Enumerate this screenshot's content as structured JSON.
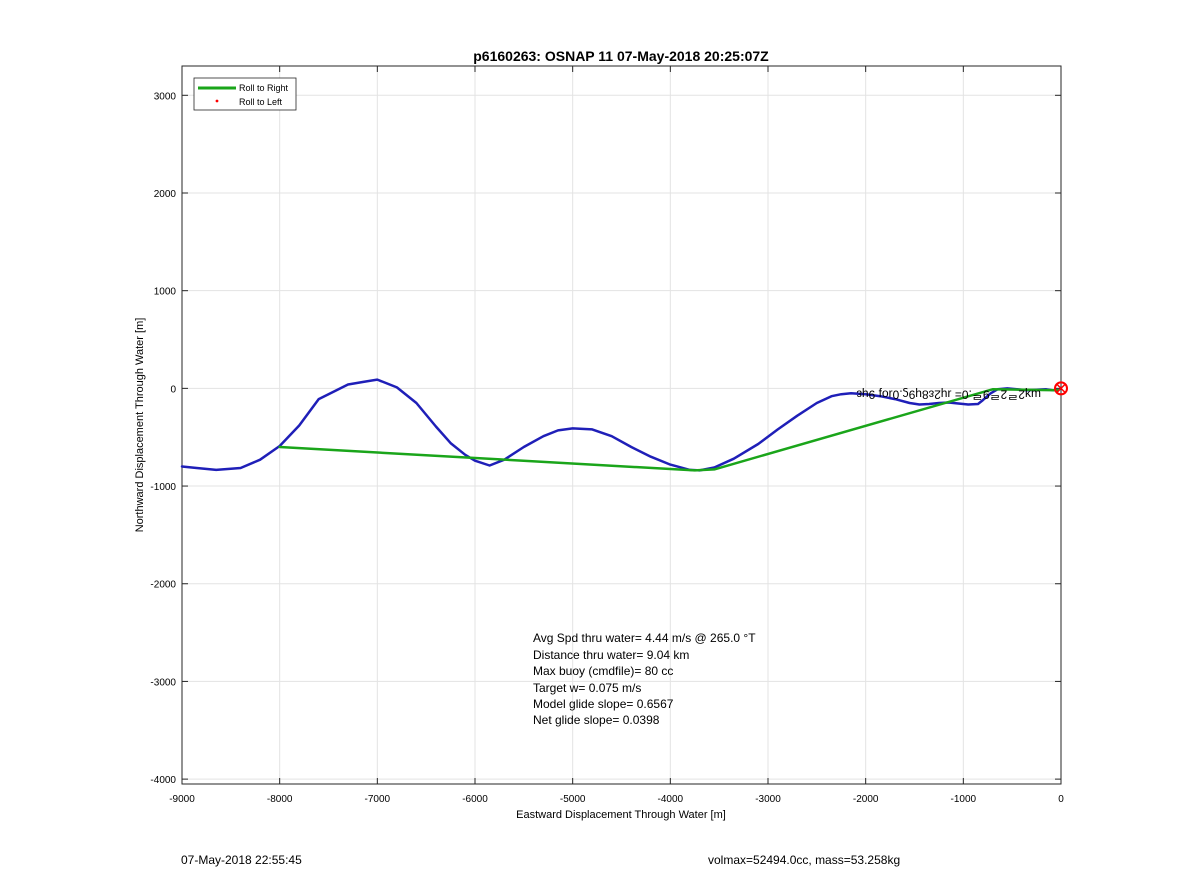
{
  "chart_data": {
    "type": "line",
    "title": "p6160263: OSNAP 11 07-May-2018 20:25:07Z",
    "xlabel": "Eastward Displacement Through Water [m]",
    "ylabel": "Northward Displacement Through Water [m]",
    "xlim": [
      -9000,
      0
    ],
    "ylim": [
      -4050,
      3300
    ],
    "xticks": [
      -9000,
      -8000,
      -7000,
      -6000,
      -5000,
      -4000,
      -3000,
      -2000,
      -1000,
      0
    ],
    "yticks": [
      -4000,
      -3000,
      -2000,
      -1000,
      0,
      1000,
      2000,
      3000
    ],
    "grid": true,
    "legend_position": "top-left",
    "series": [
      {
        "name": "Roll to Right",
        "color": "#1aa51a",
        "x": [
          -8000,
          -3750,
          -3550,
          -700,
          -30
        ],
        "y": [
          -600,
          -840,
          -830,
          -10,
          -20
        ]
      },
      {
        "name": "Roll to Left",
        "color": "#ff0000",
        "x": [],
        "y": []
      },
      {
        "name": "",
        "color": "#1f1fb8",
        "x": [
          -9000,
          -8850,
          -8650,
          -8400,
          -8200,
          -8000,
          -7800,
          -7600,
          -7500,
          -7300,
          -7150,
          -7000,
          -6800,
          -6600,
          -6400,
          -6250,
          -6100,
          -6000,
          -5850,
          -5700,
          -5500,
          -5300,
          -5150,
          -5000,
          -4800,
          -4600,
          -4400,
          -4200,
          -4000,
          -3800,
          -3700,
          -3550,
          -3350,
          -3100,
          -2900,
          -2700,
          -2500,
          -2350,
          -2250,
          -2150,
          -2000,
          -1850,
          -1700,
          -1550,
          -1450,
          -1350,
          -1250,
          -1150,
          -1050,
          -950,
          -850,
          -800,
          -720,
          -650,
          -550,
          -450,
          -350,
          -250,
          -150,
          -80,
          -30
        ],
        "y": [
          -800,
          -815,
          -835,
          -815,
          -730,
          -590,
          -380,
          -110,
          -60,
          40,
          65,
          90,
          10,
          -150,
          -390,
          -560,
          -680,
          -740,
          -790,
          -730,
          -600,
          -490,
          -430,
          -410,
          -420,
          -490,
          -600,
          -700,
          -780,
          -835,
          -840,
          -810,
          -720,
          -570,
          -420,
          -280,
          -150,
          -80,
          -60,
          -50,
          -60,
          -80,
          -110,
          -150,
          -165,
          -160,
          -150,
          -145,
          -155,
          -165,
          -160,
          -120,
          -50,
          -10,
          0,
          -10,
          -20,
          -15,
          -10,
          -20,
          -20
        ]
      }
    ],
    "annotations": {
      "stats_lines": [
        "Avg Spd thru water=  4.44 m/s @ 265.0 °T",
        "Distance thru water=  9.04 km",
        "Max buoy (cmdfile)= 80 cc",
        "Target w= 0.075 m/s",
        "Model glide slope= 0.6567",
        "Net glide slope= 0.0398"
      ],
      "rotated_label": "ɯʞ2ᄅ2ᄅ9ᄅ.0= ɹɥ2ɛ8ɥ9ϛ.0ɹoɟ 9ɥɛ"
    },
    "marker": {
      "x": 0,
      "y": 0,
      "color": "#ff0000"
    }
  },
  "footer": {
    "left": "07-May-2018 22:55:45",
    "right": "volmax=52494.0cc, mass=53.258kg"
  }
}
